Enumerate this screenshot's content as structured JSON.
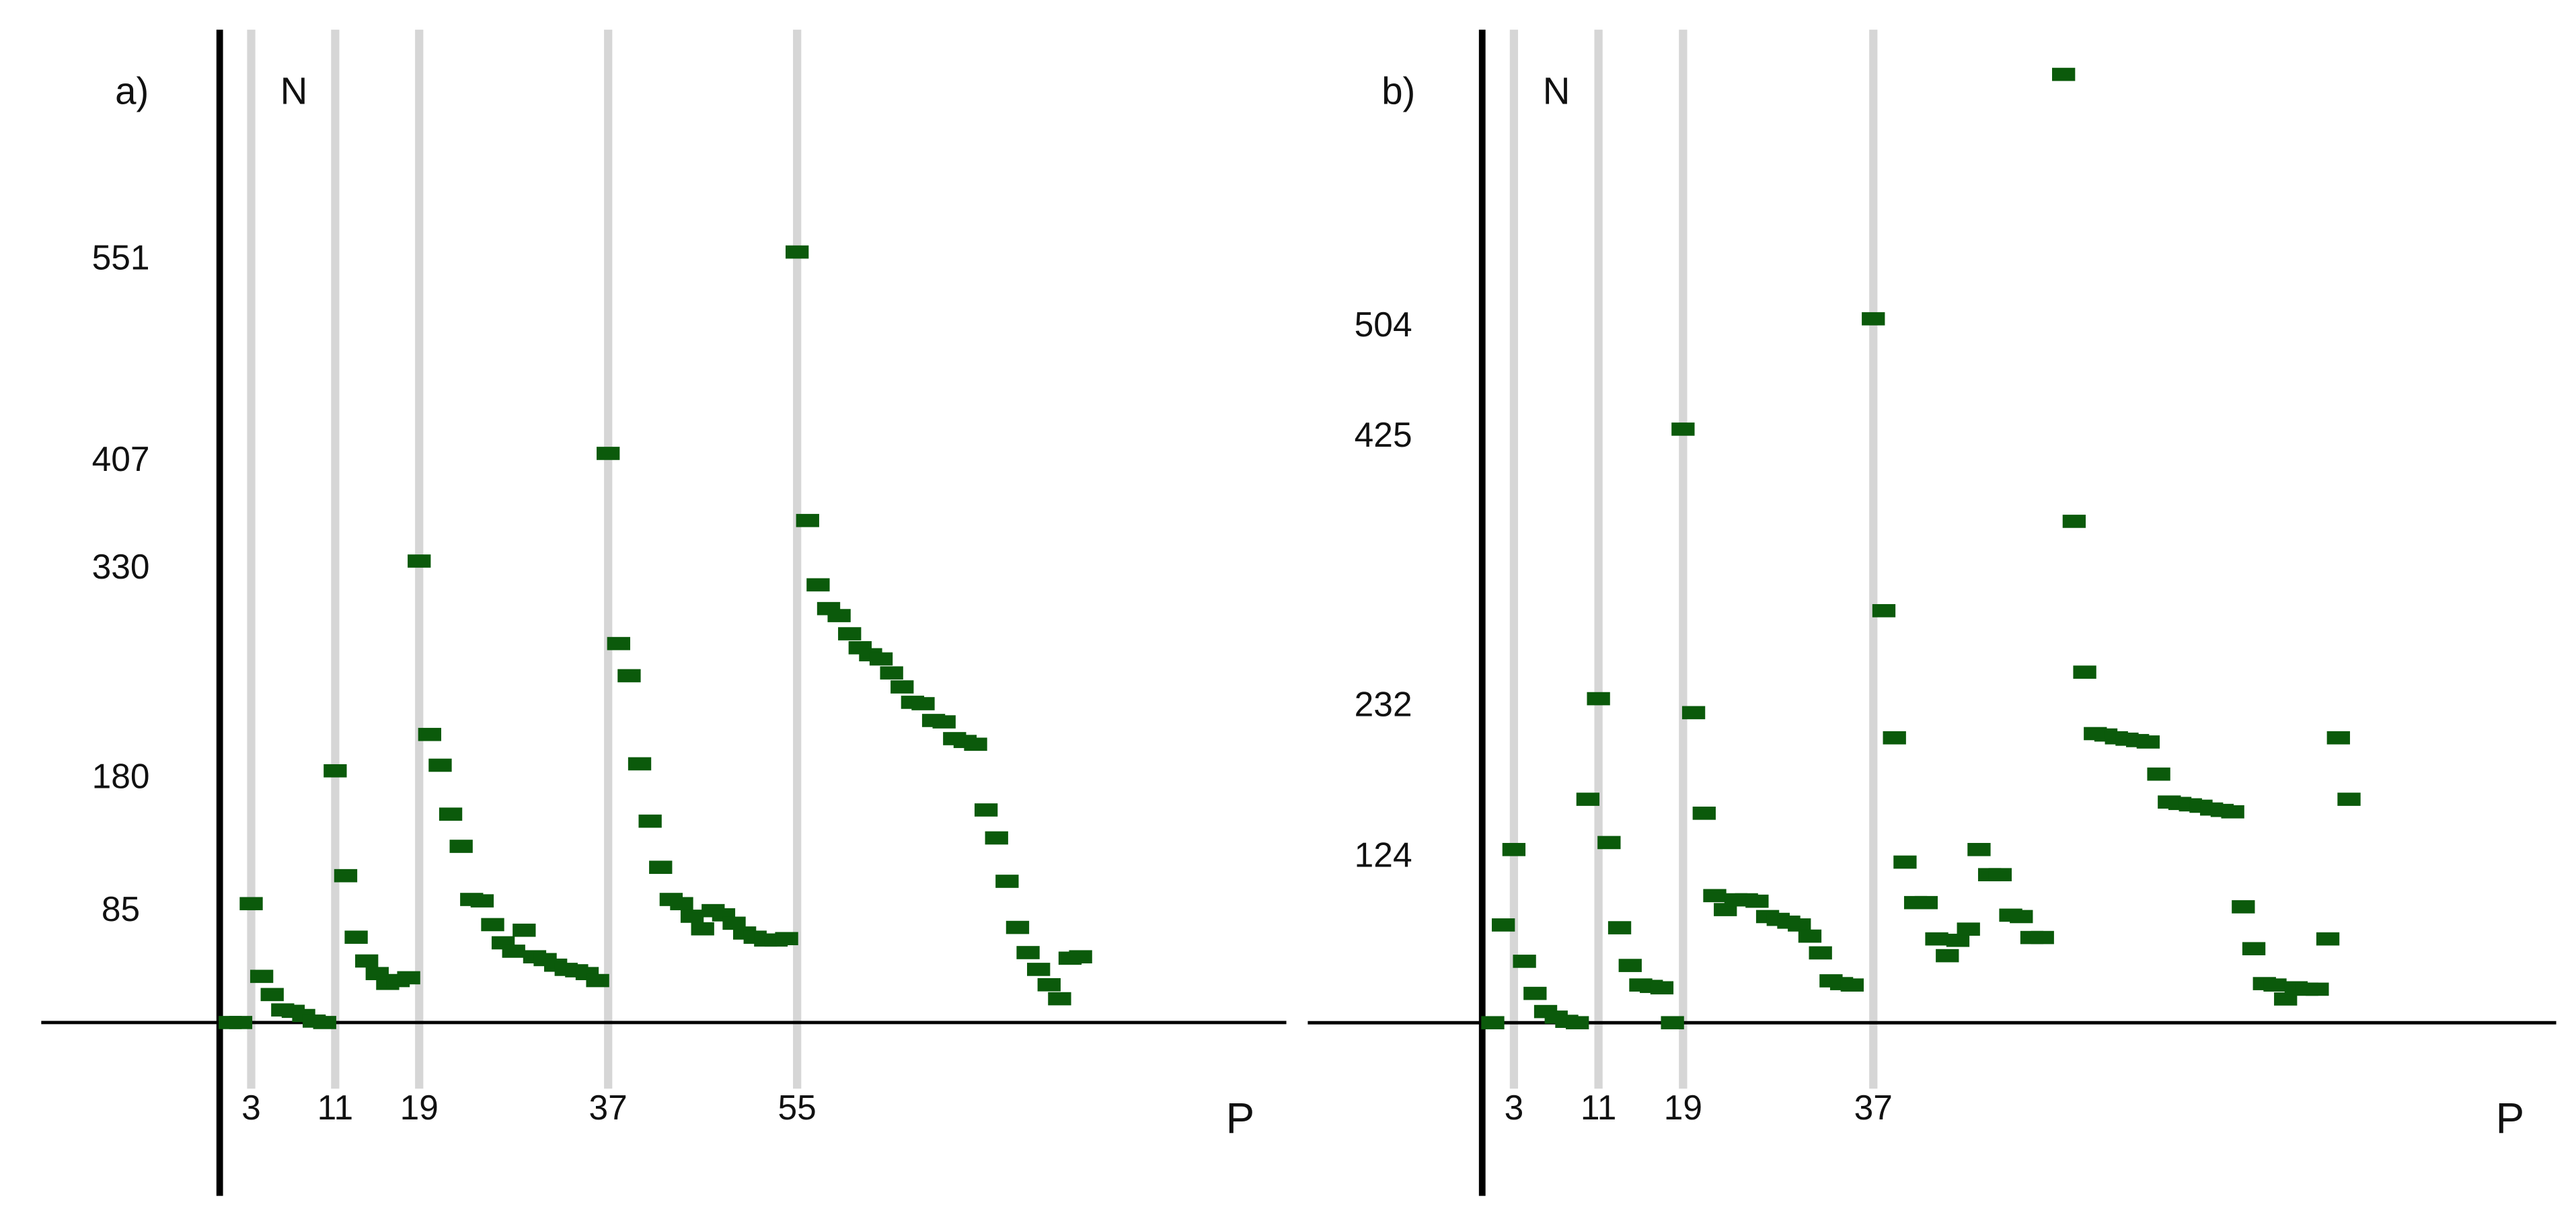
{
  "chart_data": [
    {
      "type": "scatter",
      "label": "a)",
      "y_label": "N",
      "x_label": "P",
      "color": "#0b5a0b",
      "xgrid": true,
      "x": [
        1,
        2,
        3,
        4,
        5,
        6,
        7,
        8,
        9,
        10,
        11,
        12,
        13,
        14,
        15,
        16,
        17,
        18,
        19,
        20,
        21,
        22,
        23,
        24,
        25,
        26,
        27,
        28,
        29,
        30,
        31,
        32,
        33,
        34,
        35,
        36,
        37,
        38,
        39,
        40,
        41,
        42,
        43,
        44,
        45,
        46,
        47,
        48,
        49,
        50,
        51,
        52,
        53,
        54,
        55,
        56,
        57,
        58,
        59,
        60,
        61,
        62,
        63,
        64,
        65,
        66,
        67,
        68,
        69,
        70,
        71,
        72,
        73,
        74,
        75,
        76,
        77,
        78,
        79,
        80,
        81,
        82
      ],
      "values": [
        0,
        0,
        85,
        33,
        20,
        9,
        8,
        5,
        1,
        0,
        180,
        105,
        61,
        44,
        35,
        28,
        30,
        32,
        330,
        206,
        184,
        149,
        126,
        88,
        87,
        70,
        57,
        51,
        66,
        47,
        45,
        41,
        38,
        37,
        35,
        30,
        407,
        271,
        248,
        185,
        144,
        111,
        88,
        85,
        76,
        67,
        80,
        77,
        71,
        64,
        61,
        59,
        59,
        60,
        551,
        359,
        313,
        296,
        291,
        278,
        268,
        263,
        260,
        250,
        240,
        229,
        228,
        216,
        215,
        203,
        201,
        199,
        152,
        132,
        101,
        68,
        50,
        38,
        27,
        17,
        46,
        47
      ],
      "xlim": [
        -17,
        101.6
      ],
      "ylim": [
        -124,
        710
      ],
      "xticks": [
        3,
        11,
        19,
        37,
        55
      ],
      "yticks": [
        85,
        180,
        330,
        407,
        551
      ]
    },
    {
      "type": "scatter",
      "label": "b)",
      "y_label": "N",
      "x_label": "P",
      "color": "#0b5a0b",
      "xgrid": true,
      "x": [
        1,
        2,
        3,
        4,
        5,
        6,
        7,
        8,
        9,
        10,
        11,
        12,
        13,
        14,
        15,
        16,
        17,
        18,
        19,
        20,
        21,
        22,
        23,
        24,
        25,
        26,
        27,
        28,
        29,
        30,
        31,
        32,
        33,
        34,
        35,
        37,
        38,
        39,
        40,
        41,
        42,
        43,
        44,
        45,
        46,
        47,
        48,
        49,
        50,
        51,
        52,
        53,
        55,
        56,
        57,
        58,
        59,
        60,
        61,
        62,
        63,
        64,
        65,
        66,
        67,
        68,
        69,
        70,
        71,
        72,
        73,
        74,
        75,
        76,
        77,
        78,
        79,
        80,
        81,
        82
      ],
      "values": [
        0,
        70,
        124,
        44,
        21,
        8,
        4,
        1,
        0,
        160,
        232,
        129,
        68,
        41,
        27,
        26,
        25,
        0,
        425,
        222,
        150,
        91,
        81,
        88,
        88,
        87,
        76,
        74,
        72,
        70,
        62,
        50,
        30,
        28,
        27,
        504,
        295,
        204,
        115,
        86,
        86,
        60,
        48,
        59,
        67,
        124,
        106,
        106,
        77,
        76,
        61,
        61,
        679,
        359,
        251,
        207,
        206,
        204,
        203,
        202,
        201,
        178,
        158,
        157,
        156,
        155,
        153,
        152,
        151,
        83,
        53,
        28,
        27,
        17,
        25,
        24,
        24,
        60,
        204,
        160
      ],
      "xlim": [
        -16.5,
        101.6
      ],
      "ylim": [
        -124,
        711
      ],
      "xticks": [
        3,
        11,
        19,
        37
      ],
      "yticks": [
        124,
        232,
        425,
        504
      ]
    }
  ]
}
